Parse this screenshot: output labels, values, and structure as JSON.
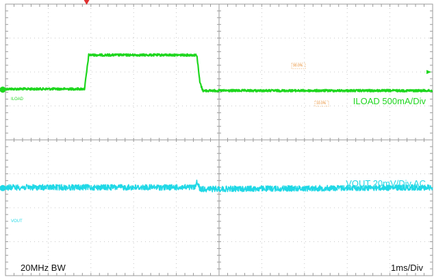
{
  "chart_data": {
    "type": "line",
    "x_unit_per_div": "1ms",
    "divisions": {
      "x": 10,
      "y": 8
    },
    "grid": true,
    "series": [
      {
        "name": "ILOAD",
        "probe_tag": "ILOAD",
        "channel": "4",
        "label": "ILOAD 500mA/Div",
        "color": "#1ed61e",
        "x_ms": [
          0.0,
          1.85,
          1.95,
          4.48,
          4.55,
          4.62,
          10.0
        ],
        "y_div": [
          1.5,
          1.5,
          2.5,
          2.5,
          1.7,
          1.45,
          1.45
        ]
      },
      {
        "name": "VOUT",
        "probe_tag": "VOUT",
        "channel": "2",
        "label": "VOUT 20mV/Div AC",
        "color": "#20d8e6",
        "x_ms": [
          0.0,
          4.45,
          4.48,
          4.55,
          10.0
        ],
        "y_div": [
          -1.4,
          -1.4,
          -1.2,
          -1.45,
          -1.4
        ]
      }
    ],
    "measurement_tags": [
      "90.0%",
      "10.0%"
    ],
    "bandwidth_label": "20MHz BW",
    "timebase_label": "1ms/Div"
  },
  "colors": {
    "grid": "#b8b8b8",
    "frame": "#9a9a9a",
    "trigger": "#e88a2a",
    "trigger_marker": "#e03030"
  }
}
